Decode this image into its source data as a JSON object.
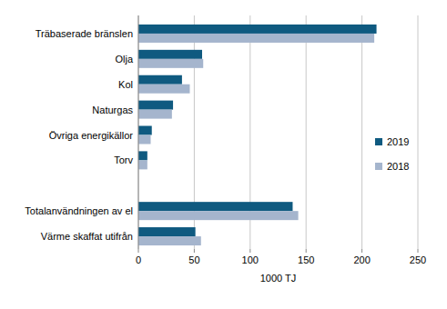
{
  "chart_data": {
    "type": "bar",
    "orientation": "horizontal",
    "categories": [
      "Träbaserade bränslen",
      "Olja",
      "Kol",
      "Naturgas",
      "Övriga energikällor",
      "Torv",
      null,
      "Totalanvändningen av el",
      "Värme skaffat utifrån"
    ],
    "series": [
      {
        "name": "2019",
        "color": "#0f5a80",
        "values": [
          213,
          57,
          39,
          31,
          12,
          8,
          null,
          138,
          51
        ]
      },
      {
        "name": "2018",
        "color": "#a5b5cd",
        "values": [
          211,
          58,
          46,
          30,
          11,
          8,
          null,
          143,
          56
        ]
      }
    ],
    "x_label": "1000 TJ",
    "xlim": [
      0,
      250
    ],
    "xticks": [
      0,
      50,
      100,
      150,
      200,
      250
    ],
    "grid": true,
    "legend": "right"
  }
}
